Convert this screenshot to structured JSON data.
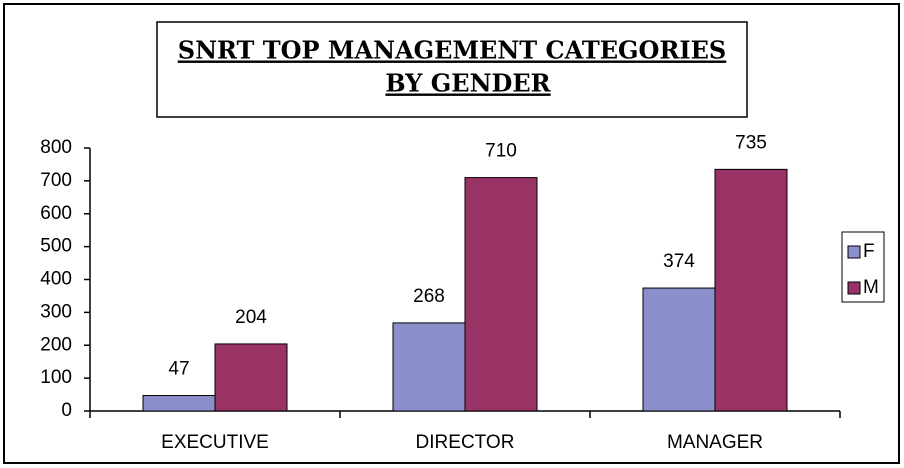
{
  "chart_data": {
    "type": "bar",
    "title": [
      "SNRT TOP MANAGEMENT CATEGORIES",
      "BY GENDER"
    ],
    "categories": [
      "EXECUTIVE",
      "DIRECTOR",
      "MANAGER"
    ],
    "series": [
      {
        "name": "F",
        "color": "#8b8fcb",
        "values": [
          47,
          268,
          374
        ]
      },
      {
        "name": "M",
        "color": "#993366",
        "values": [
          204,
          710,
          735
        ]
      }
    ],
    "ylim": [
      0,
      800
    ],
    "yticks": [
      0,
      100,
      200,
      300,
      400,
      500,
      600,
      700,
      800
    ],
    "grid": false,
    "legend": "right"
  }
}
